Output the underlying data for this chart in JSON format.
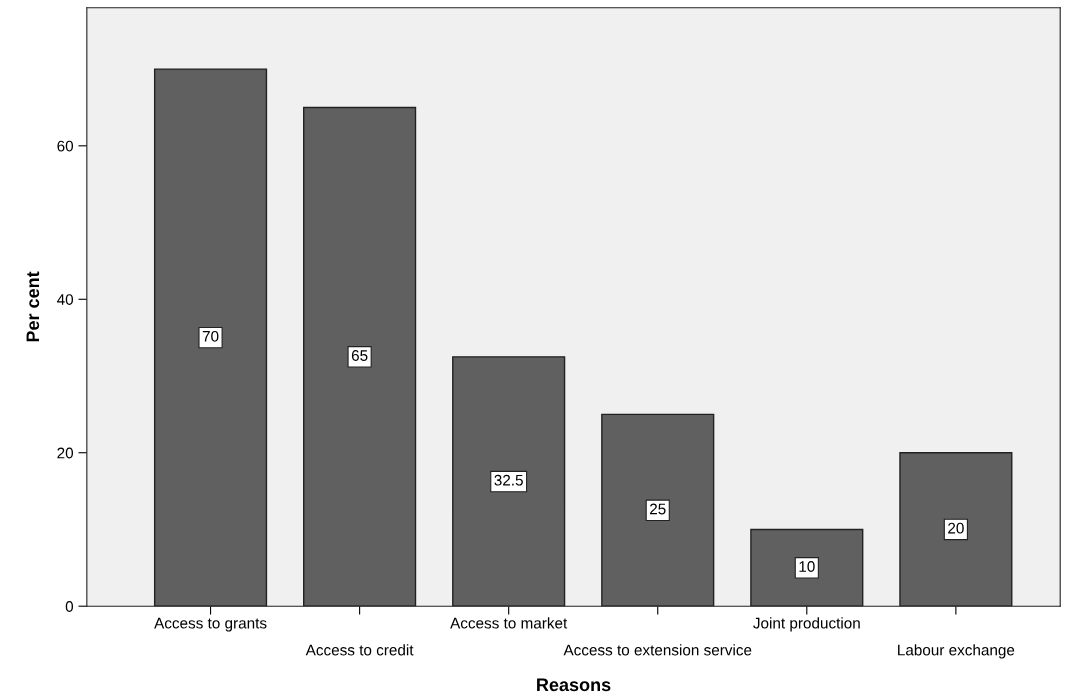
{
  "chart_data": {
    "type": "bar",
    "xlabel": "Reasons",
    "ylabel": "Per cent",
    "categories": [
      "Access to grants",
      "Access to credit",
      "Access to market",
      "Access to extension service",
      "Joint production",
      "Labour exchange"
    ],
    "values": [
      70,
      65,
      32.5,
      25,
      10,
      20
    ],
    "color": "#606060",
    "ylim": [
      0,
      78
    ],
    "yticks": [
      0,
      20,
      40,
      60
    ],
    "data_labels": true,
    "grid": false,
    "legend": false
  }
}
